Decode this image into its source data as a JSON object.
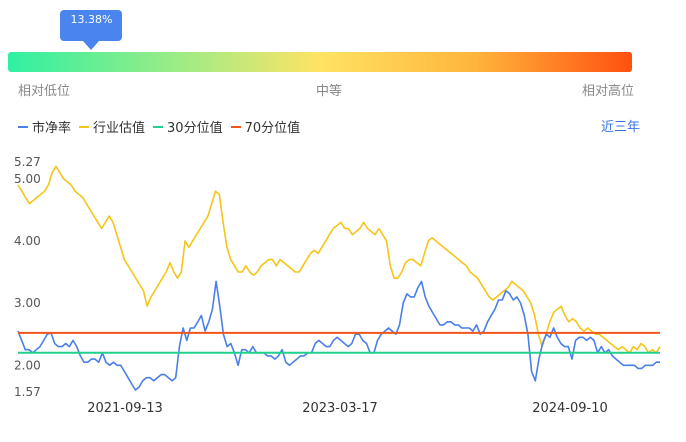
{
  "percentile": {
    "value_label": "13.38%",
    "value": 13.38,
    "low_label": "相对低位",
    "mid_label": "中等",
    "high_label": "相对高位"
  },
  "legend": [
    {
      "label": "市净率",
      "color": "#4a7fe8"
    },
    {
      "label": "行业估值",
      "color": "#f5c518"
    },
    {
      "label": "30分位值",
      "color": "#1fd18a"
    },
    {
      "label": "70分位值",
      "color": "#f0561c"
    }
  ],
  "range_button": "近三年",
  "chart_data": {
    "type": "line",
    "x_ticks": [
      "2021-09-13",
      "2023-03-17",
      "2024-09-10"
    ],
    "y_ticks": [
      "5.27",
      "5.00",
      "4.00",
      "3.00",
      "2.00",
      "1.57"
    ],
    "ylim": [
      1.57,
      5.27
    ],
    "series": [
      {
        "name": "市净率",
        "color": "#4a7fe8",
        "values": [
          2.55,
          2.4,
          2.25,
          2.25,
          2.2,
          2.25,
          2.3,
          2.4,
          2.5,
          2.52,
          2.35,
          2.3,
          2.3,
          2.35,
          2.3,
          2.4,
          2.3,
          2.15,
          2.05,
          2.05,
          2.1,
          2.1,
          2.05,
          2.2,
          2.05,
          2.0,
          2.05,
          2.0,
          2.0,
          1.9,
          1.8,
          1.7,
          1.6,
          1.65,
          1.75,
          1.8,
          1.8,
          1.75,
          1.8,
          1.85,
          1.85,
          1.8,
          1.75,
          1.8,
          2.3,
          2.6,
          2.4,
          2.6,
          2.6,
          2.7,
          2.8,
          2.55,
          2.7,
          2.9,
          3.35,
          2.95,
          2.5,
          2.3,
          2.35,
          2.2,
          2.0,
          2.25,
          2.25,
          2.2,
          2.3,
          2.2,
          2.2,
          2.2,
          2.15,
          2.15,
          2.1,
          2.15,
          2.25,
          2.05,
          2.0,
          2.05,
          2.1,
          2.15,
          2.15,
          2.2,
          2.2,
          2.35,
          2.4,
          2.35,
          2.3,
          2.3,
          2.4,
          2.45,
          2.4,
          2.35,
          2.3,
          2.35,
          2.5,
          2.5,
          2.4,
          2.35,
          2.2,
          2.2,
          2.4,
          2.5,
          2.55,
          2.6,
          2.55,
          2.5,
          2.65,
          3.0,
          3.15,
          3.1,
          3.1,
          3.25,
          3.35,
          3.1,
          2.95,
          2.85,
          2.75,
          2.65,
          2.65,
          2.7,
          2.7,
          2.65,
          2.65,
          2.6,
          2.6,
          2.6,
          2.55,
          2.65,
          2.5,
          2.55,
          2.7,
          2.8,
          2.9,
          3.05,
          3.05,
          3.2,
          3.15,
          3.05,
          3.1,
          3.0,
          2.8,
          2.5,
          1.9,
          1.75,
          2.1,
          2.35,
          2.5,
          2.45,
          2.6,
          2.45,
          2.35,
          2.3,
          2.3,
          2.1,
          2.4,
          2.45,
          2.45,
          2.4,
          2.45,
          2.4,
          2.2,
          2.3,
          2.2,
          2.25,
          2.15,
          2.1,
          2.05,
          2.0,
          2.0,
          2.0,
          2.0,
          1.95,
          1.95,
          2.0,
          2.0,
          2.0,
          2.05,
          2.05
        ]
      },
      {
        "name": "行业估值",
        "color": "#f5c518",
        "values": [
          4.9,
          4.8,
          4.7,
          4.6,
          4.65,
          4.7,
          4.75,
          4.8,
          4.9,
          5.1,
          5.2,
          5.1,
          5.0,
          4.95,
          4.9,
          4.8,
          4.75,
          4.7,
          4.6,
          4.5,
          4.4,
          4.3,
          4.2,
          4.3,
          4.4,
          4.3,
          4.1,
          3.9,
          3.7,
          3.6,
          3.5,
          3.4,
          3.3,
          3.2,
          2.95,
          3.1,
          3.2,
          3.3,
          3.4,
          3.5,
          3.65,
          3.5,
          3.4,
          3.5,
          4.0,
          3.9,
          4.0,
          4.1,
          4.2,
          4.3,
          4.4,
          4.6,
          4.8,
          4.75,
          4.3,
          3.9,
          3.7,
          3.6,
          3.5,
          3.5,
          3.6,
          3.5,
          3.45,
          3.5,
          3.6,
          3.65,
          3.7,
          3.7,
          3.6,
          3.7,
          3.65,
          3.6,
          3.55,
          3.5,
          3.5,
          3.6,
          3.7,
          3.8,
          3.85,
          3.8,
          3.9,
          4.0,
          4.1,
          4.2,
          4.25,
          4.3,
          4.2,
          4.2,
          4.1,
          4.15,
          4.2,
          4.3,
          4.2,
          4.15,
          4.1,
          4.2,
          4.1,
          4.0,
          3.6,
          3.4,
          3.4,
          3.5,
          3.65,
          3.7,
          3.7,
          3.65,
          3.6,
          3.8,
          4.0,
          4.05,
          4.0,
          3.95,
          3.9,
          3.85,
          3.8,
          3.75,
          3.7,
          3.65,
          3.6,
          3.5,
          3.45,
          3.4,
          3.3,
          3.2,
          3.1,
          3.05,
          3.1,
          3.15,
          3.2,
          3.25,
          3.35,
          3.3,
          3.25,
          3.2,
          3.1,
          3.0,
          2.8,
          2.5,
          2.3,
          2.5,
          2.7,
          2.85,
          2.9,
          2.95,
          2.8,
          2.7,
          2.75,
          2.7,
          2.6,
          2.55,
          2.6,
          2.55,
          2.5,
          2.5,
          2.45,
          2.4,
          2.35,
          2.3,
          2.25,
          2.3,
          2.25,
          2.2,
          2.3,
          2.25,
          2.35,
          2.3,
          2.2,
          2.25,
          2.2,
          2.3
        ]
      },
      {
        "name": "30分位值",
        "color": "#1fd18a",
        "values": [
          2.2,
          2.2
        ]
      },
      {
        "name": "70分位值",
        "color": "#f0561c",
        "values": [
          2.52,
          2.52
        ]
      }
    ]
  }
}
